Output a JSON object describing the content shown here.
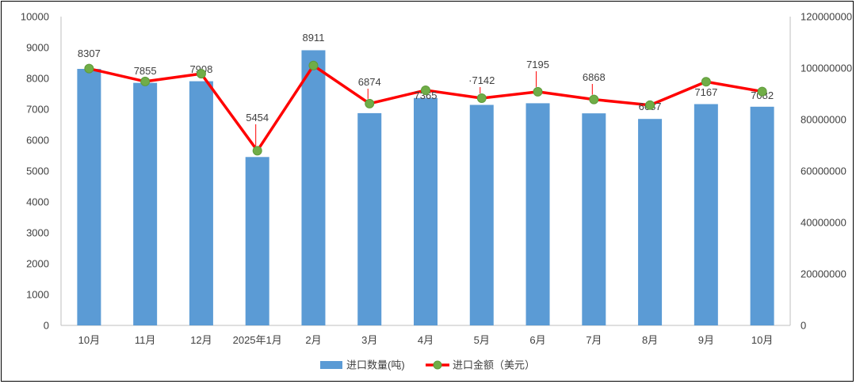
{
  "chart_data": {
    "type": "bar+line",
    "categories": [
      "10月",
      "11月",
      "12月",
      "2025年1月",
      "2月",
      "3月",
      "4月",
      "5月",
      "6月",
      "7月",
      "8月",
      "9月",
      "10月"
    ],
    "series": [
      {
        "name": "进口数量(吨)",
        "type": "bar",
        "axis": "left",
        "color": "#5B9BD5",
        "values": [
          8307,
          7855,
          7908,
          5454,
          8911,
          6874,
          7365,
          7142,
          7195,
          6868,
          6687,
          7167,
          7082
        ],
        "labels": [
          "8307",
          "7855",
          "7908",
          "5454",
          "8911",
          "6874",
          "7365",
          "·7142",
          "7195",
          "6868",
          "6687",
          "7167",
          "7082"
        ]
      },
      {
        "name": "进口金额（美元）",
        "type": "line",
        "axis": "right",
        "color": "#FF0000",
        "marker_color": "#70AD47",
        "values": [
          99800000,
          94800000,
          97800000,
          67900000,
          101000000,
          86200000,
          91400000,
          88300000,
          90800000,
          87800000,
          85600000,
          94700000,
          90900000
        ]
      }
    ],
    "y_left": {
      "min": 0,
      "max": 10000,
      "ticks": [
        "0",
        "1000",
        "2000",
        "3000",
        "4000",
        "5000",
        "6000",
        "7000",
        "8000",
        "9000",
        "10000"
      ]
    },
    "y_right": {
      "min": 0,
      "max": 120000000,
      "ticks": [
        "0",
        "20000000",
        "40000000",
        "60000000",
        "80000000",
        "100000000",
        "120000000"
      ]
    },
    "grid": false,
    "legend_position": "bottom"
  }
}
